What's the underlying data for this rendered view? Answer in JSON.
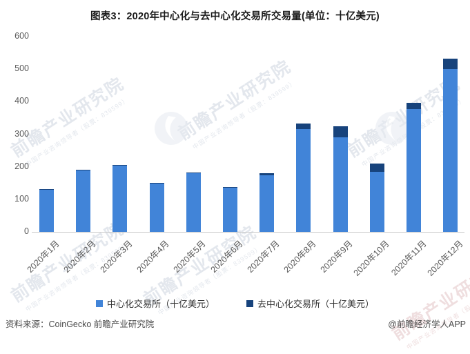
{
  "title": "图表3：2020年中心化与去中心化交易所交易量(单位：十亿美元)",
  "chart_data": {
    "type": "bar",
    "stacked": true,
    "categories": [
      "2020年1月",
      "2020年2月",
      "2020年3月",
      "2020年4月",
      "2020年5月",
      "2020年6月",
      "2020年7月",
      "2020年8月",
      "2020年9月",
      "2020年10月",
      "2020年11月",
      "2020年12月"
    ],
    "series": [
      {
        "name": "中心化交易所（十亿美元）",
        "color": "#4184d8",
        "values": [
          130,
          189,
          204,
          149,
          181,
          136,
          174,
          315,
          291,
          185,
          377,
          501
        ]
      },
      {
        "name": "去中心化交易所（十亿美元）",
        "color": "#17437c",
        "values": [
          1,
          2,
          2,
          2,
          2,
          2,
          6,
          17,
          34,
          25,
          20,
          32
        ]
      }
    ],
    "title": "图表3：2020年中心化与去中心化交易所交易量(单位：十亿美元)",
    "xlabel": "",
    "ylabel": "",
    "ylim": [
      0,
      600
    ],
    "yticks": [
      0,
      100,
      200,
      300,
      400,
      500,
      600
    ],
    "grid": false,
    "legend_position": "bottom"
  },
  "footer": {
    "source": "资料来源：CoinGecko 前瞻产业研究院",
    "credit": "@前瞻经济学人APP"
  },
  "watermark": {
    "brand": "前瞻产业研究院",
    "sub": "中国产业咨询领导者（股票：839599）"
  }
}
